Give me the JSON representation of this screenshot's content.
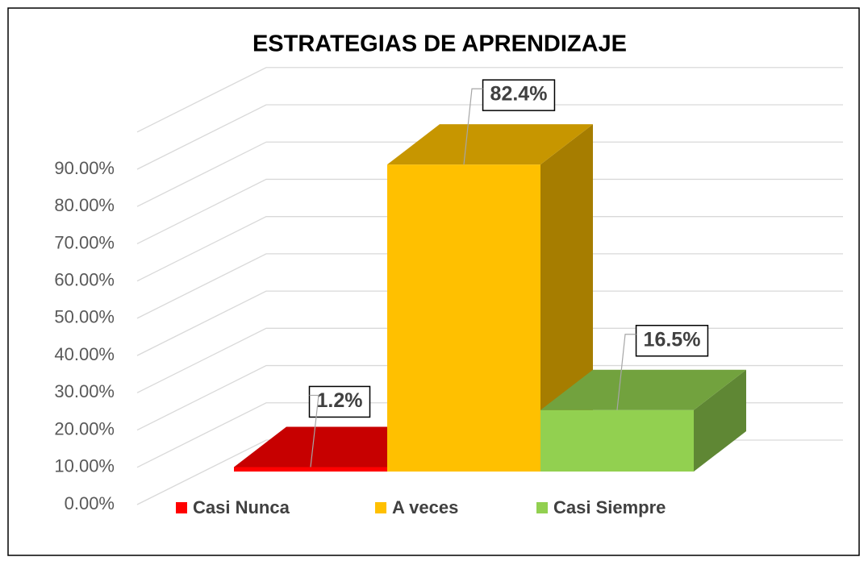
{
  "chart_data": {
    "type": "bar",
    "title": "ESTRATEGIAS DE APRENDIZAJE",
    "categories": [
      null
    ],
    "series": [
      {
        "name": "Casi Nunca",
        "color": "#ff0000",
        "values": [
          1.2
        ],
        "value_labels": [
          "1.2%"
        ]
      },
      {
        "name": "A veces",
        "color": "#ffc000",
        "values": [
          82.4
        ],
        "value_labels": [
          "82.4%"
        ]
      },
      {
        "name": "Casi Siempre",
        "color": "#92d050",
        "values": [
          16.5
        ],
        "value_labels": [
          "16.5%"
        ]
      }
    ],
    "ylim": [
      0,
      100
    ],
    "yticks": [
      {
        "value": 0,
        "label": "0.00%"
      },
      {
        "value": 10,
        "label": "10.00%"
      },
      {
        "value": 20,
        "label": "20.00%"
      },
      {
        "value": 30,
        "label": "30.00%"
      },
      {
        "value": 40,
        "label": "40.00%"
      },
      {
        "value": 50,
        "label": "50.00%"
      },
      {
        "value": 60,
        "label": "60.00%"
      },
      {
        "value": 70,
        "label": "70.00%"
      },
      {
        "value": 80,
        "label": "80.00%"
      },
      {
        "value": 90,
        "label": "90.00%"
      }
    ],
    "grid": true,
    "legend": "bottom"
  }
}
